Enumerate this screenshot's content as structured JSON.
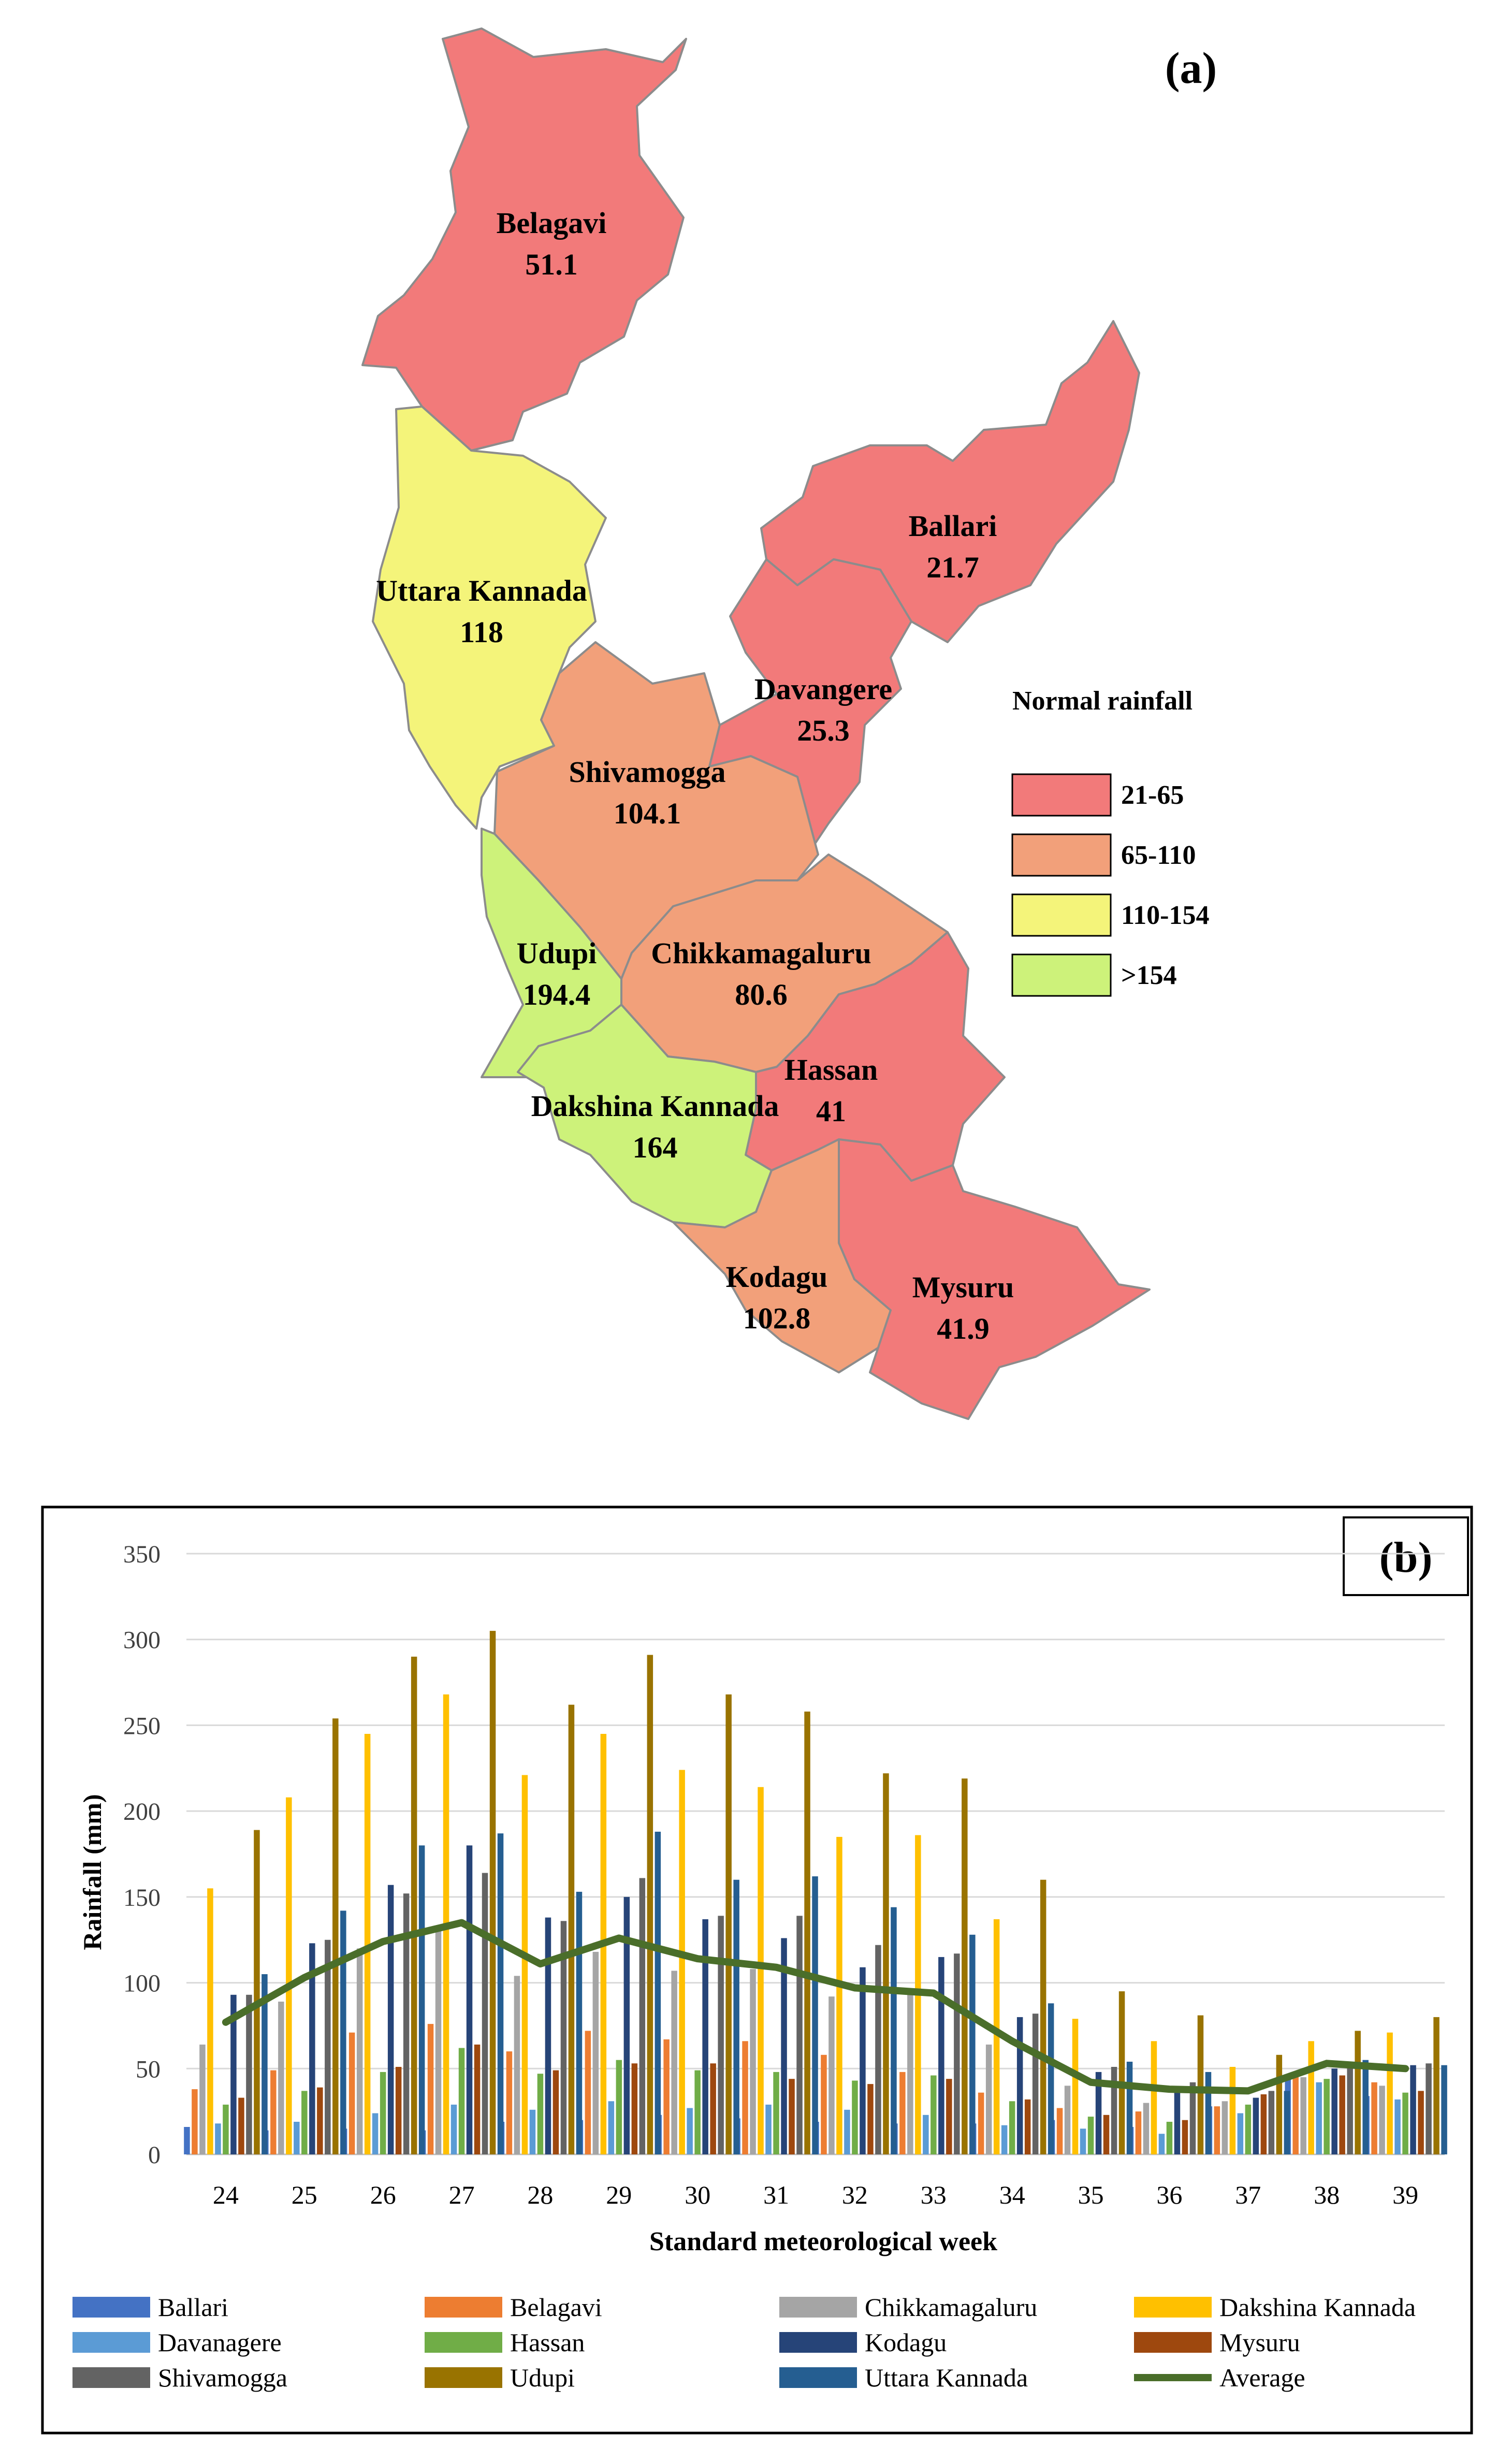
{
  "map": {
    "panel_label": "(a)",
    "legend_title": "Normal rainfall",
    "legend": [
      {
        "label": "21-65",
        "color": "#f27a7a"
      },
      {
        "label": "65-110",
        "color": "#f2a07a"
      },
      {
        "label": "110-154",
        "color": "#f4f47a"
      },
      {
        "label": ">154",
        "color": "#cdf27a"
      }
    ],
    "districts": [
      {
        "name": "Belagavi",
        "value": "51.1",
        "class": 0
      },
      {
        "name": "Uttara Kannada",
        "value": "118",
        "class": 2
      },
      {
        "name": "Ballari",
        "value": "21.7",
        "class": 0
      },
      {
        "name": "Davangere",
        "value": "25.3",
        "class": 0
      },
      {
        "name": "Shivamogga",
        "value": "104.1",
        "class": 1
      },
      {
        "name": "Udupi",
        "value": "194.4",
        "class": 3
      },
      {
        "name": "Chikkamagaluru",
        "value": "80.6",
        "class": 1
      },
      {
        "name": "Hassan",
        "value": "41",
        "class": 0
      },
      {
        "name": "Dakshina Kannada",
        "value": "164",
        "class": 3
      },
      {
        "name": "Kodagu",
        "value": "102.8",
        "class": 1
      },
      {
        "name": "Mysuru",
        "value": "41.9",
        "class": 0
      }
    ]
  },
  "chart_data": {
    "type": "bar",
    "panel_label": "(b)",
    "title": "",
    "xlabel": "Standard meteorological week",
    "ylabel": "Rainfall (mm)",
    "ylim": [
      0,
      350
    ],
    "yticks": [
      "0",
      "50",
      "100",
      "150",
      "200",
      "250",
      "300",
      "350"
    ],
    "grid": true,
    "legend_position": "bottom",
    "categories": [
      "24",
      "25",
      "26",
      "27",
      "28",
      "29",
      "30",
      "31",
      "32",
      "33",
      "34",
      "35",
      "36",
      "37",
      "38",
      "39"
    ],
    "series": [
      {
        "name": "Ballari",
        "color": "#4472c4",
        "values": [
          16,
          14,
          15,
          14,
          19,
          20,
          23,
          21,
          19,
          18,
          18,
          20,
          16,
          28,
          44,
          34
        ]
      },
      {
        "name": "Belagavi",
        "color": "#ed7d31",
        "values": [
          38,
          49,
          71,
          76,
          60,
          72,
          67,
          66,
          58,
          48,
          36,
          27,
          25,
          28,
          46,
          42
        ]
      },
      {
        "name": "Chikkamagaluru",
        "color": "#a5a5a5",
        "values": [
          64,
          89,
          120,
          130,
          104,
          118,
          107,
          108,
          92,
          95,
          64,
          40,
          30,
          31,
          45,
          40
        ]
      },
      {
        "name": "Dakshina Kannada",
        "color": "#ffc000",
        "values": [
          155,
          208,
          245,
          268,
          221,
          245,
          224,
          214,
          185,
          186,
          137,
          79,
          66,
          51,
          66,
          71
        ]
      },
      {
        "name": "Davanagere",
        "color": "#5b9bd5",
        "values": [
          18,
          19,
          24,
          29,
          26,
          31,
          27,
          29,
          26,
          23,
          17,
          15,
          12,
          24,
          42,
          32
        ]
      },
      {
        "name": "Hassan",
        "color": "#70ad47",
        "values": [
          29,
          37,
          48,
          62,
          47,
          55,
          49,
          48,
          43,
          46,
          31,
          22,
          19,
          29,
          44,
          36
        ]
      },
      {
        "name": "Kodagu",
        "color": "#264478",
        "values": [
          93,
          123,
          157,
          180,
          138,
          150,
          137,
          126,
          109,
          115,
          80,
          48,
          38,
          33,
          50,
          52
        ]
      },
      {
        "name": "Mysuru",
        "color": "#9e480e",
        "values": [
          33,
          39,
          51,
          64,
          49,
          53,
          53,
          44,
          41,
          44,
          32,
          23,
          20,
          35,
          46,
          37
        ]
      },
      {
        "name": "Shivamogga",
        "color": "#636363",
        "values": [
          93,
          125,
          152,
          164,
          136,
          161,
          139,
          139,
          122,
          117,
          82,
          51,
          42,
          37,
          52,
          53
        ]
      },
      {
        "name": "Udupi",
        "color": "#997300",
        "values": [
          189,
          254,
          290,
          305,
          262,
          291,
          268,
          258,
          222,
          219,
          160,
          95,
          81,
          58,
          72,
          80
        ]
      },
      {
        "name": "Uttara Kannada",
        "color": "#255e91",
        "values": [
          105,
          142,
          180,
          187,
          153,
          188,
          160,
          162,
          144,
          128,
          88,
          54,
          48,
          37,
          55,
          52
        ]
      }
    ],
    "line_series": {
      "name": "Average",
      "color": "#4a6e2a",
      "values": [
        77,
        103,
        124,
        135,
        111,
        126,
        114,
        109,
        97,
        94,
        66,
        42,
        38,
        37,
        53,
        50
      ]
    }
  }
}
